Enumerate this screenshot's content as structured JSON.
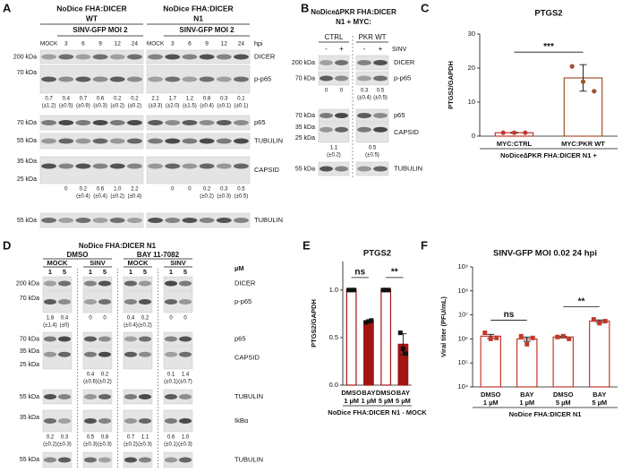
{
  "panel_labels": [
    "A",
    "B",
    "C",
    "D",
    "E",
    "F"
  ],
  "A": {
    "groups": [
      {
        "title": "NoDice FHA:DICER",
        "subtitle": "WT",
        "infection": "SINV-GFP MOI 2"
      },
      {
        "title": "NoDice FHA:DICER",
        "subtitle": "N1",
        "infection": "SINV-GFP MOI 2"
      }
    ],
    "lanes": [
      "MOCK",
      "3",
      "6",
      "9",
      "12",
      "24",
      "MOCK",
      "3",
      "6",
      "9",
      "12",
      "24"
    ],
    "lane_unit": "hpi",
    "blots": [
      {
        "markers": [
          "200 kDa"
        ],
        "target": "DICER"
      },
      {
        "markers": [
          "70 kDa"
        ],
        "target": "p-p65",
        "quant": {
          "values": [
            "0.7",
            "0.4",
            "0.7",
            "0.6",
            "0.2",
            "0.2",
            "2.1",
            "1.7",
            "1.2",
            "0.8",
            "0.3",
            "0.1"
          ],
          "sd": [
            "(±1.2)",
            "(±0.5)",
            "(±0.9)",
            "(±0.3)",
            "(±0.2)",
            "(±0.2)",
            "(±3.3)",
            "(±2.0)",
            "(±1.5)",
            "(±0.4)",
            "(±0.1)",
            "(±0.1)"
          ]
        }
      },
      {
        "markers": [
          "70 kDa"
        ],
        "target": "p65"
      },
      {
        "markers": [
          "55 kDa"
        ],
        "target": "TUBULIN"
      },
      {
        "markers": [
          "35 kDa",
          "25 kDa"
        ],
        "target": "CAPSID",
        "quant": {
          "values": [
            null,
            "0",
            "0.2",
            "0.6",
            "1.0",
            "2.2",
            null,
            "0",
            "0",
            "0.2",
            "0.3",
            "0.5"
          ],
          "sd": [
            null,
            null,
            "(±0.4)",
            "(±0.4)",
            "(±0.2)",
            "(±0.4)",
            null,
            null,
            null,
            "(±0.2)",
            "(±0.3)",
            "(±0.5)"
          ]
        }
      },
      {
        "markers": [
          "55 kDa"
        ],
        "target": "TUBULIN"
      }
    ]
  },
  "B": {
    "title": [
      "NoDice∆PKR FHA:DICER",
      "N1 + MYC:"
    ],
    "groups": [
      "CTRL",
      "PKR WT"
    ],
    "lanes": [
      "-",
      "+",
      "-",
      "+"
    ],
    "lane_unit": "SINV",
    "blots": [
      {
        "markers": [
          "200 kDa"
        ],
        "target": "DICER"
      },
      {
        "markers": [
          "70 kDa"
        ],
        "target": "p-p65",
        "quant": {
          "values": [
            "0",
            "0",
            "0.3",
            "0.5"
          ],
          "sd": [
            null,
            null,
            "(±0.4)",
            "(±0.5)"
          ]
        }
      },
      {
        "markers": [
          "70 kDa"
        ],
        "target": "p65"
      },
      {
        "markers": [
          "35 kDa",
          "25 kDa"
        ],
        "target": "CAPSID",
        "quant": {
          "values": [
            "1.1",
            "0.5"
          ],
          "sd": [
            "(±0.2)",
            "(±0.5)"
          ]
        }
      },
      {
        "markers": [
          "55 kDa"
        ],
        "target": "TUBULIN"
      }
    ]
  },
  "D": {
    "title": "NoDice FHA:DICER N1",
    "treatments": [
      "DMSO",
      "BAY 11-7082"
    ],
    "groups": [
      "MOCK",
      "SINV",
      "MOCK",
      "SINV"
    ],
    "lanes": [
      "1",
      "5",
      "1",
      "5",
      "1",
      "5",
      "1",
      "5"
    ],
    "lane_unit": "µM",
    "blots": [
      {
        "markers": [
          "200 kDa"
        ],
        "target": "DICER"
      },
      {
        "markers": [
          "70 kDa"
        ],
        "target": "p-p65",
        "quant": {
          "values": [
            "1.8",
            "0.4",
            "0",
            "0",
            "0.4",
            "0.2",
            "0",
            "0"
          ],
          "sd": [
            "(±1.4)",
            "(±0)",
            null,
            null,
            "(±0.4)",
            "(±0.2)",
            null,
            null
          ]
        }
      },
      {
        "markers": [
          "70 kDa"
        ],
        "target": "p65"
      },
      {
        "markers": [
          "35 kDa",
          "25 kDa"
        ],
        "target": "CAPSID",
        "quant": {
          "values": [
            null,
            null,
            "0.4",
            "0.2",
            null,
            null,
            "0.1",
            "1.4"
          ],
          "sd": [
            null,
            null,
            "(±0.6)",
            "(±0.2)",
            null,
            null,
            "(±0.1)",
            "(±0.7)"
          ]
        }
      },
      {
        "markers": [
          "55 kDa"
        ],
        "target": "TUBULIN"
      },
      {
        "markers": [
          "35 kDa"
        ],
        "target": "IkBα",
        "quant": {
          "values": [
            "0.2",
            "0.3",
            "0.5",
            "0.8",
            "0.7",
            "1.1",
            "0.6",
            "1.0"
          ],
          "sd": [
            "(±0.2)",
            "(±0.3)",
            "(±0.3)",
            "(±0.3)",
            "(±0.2)",
            "(±0.3)",
            "(±0.1)",
            "(±0.3)"
          ]
        }
      },
      {
        "markers": [
          "55 kDa"
        ],
        "target": "TUBULIN"
      }
    ]
  },
  "chart_data": [
    {
      "type": "bar",
      "title": "PTGS2",
      "ylabel": "PTGS2/GAPDH",
      "xlabel": "NoDice∆PKR FHA:DICER N1 +",
      "categories": [
        [
          "MYC:CTRL"
        ],
        [
          "MYC:PKR WT"
        ]
      ],
      "values": [
        1,
        17.1
      ],
      "errors": [
        0.1,
        3.9
      ],
      "points": [
        [
          1,
          1,
          1
        ],
        [
          20.5,
          16,
          13.2
        ]
      ],
      "marker": "circle",
      "edge_colors": [
        "#c0392b",
        "#a0522d"
      ],
      "fill_colors": [
        "#ffffff",
        "#ffffff"
      ],
      "point_colors": [
        "#c0392b",
        "#a0522d"
      ],
      "ylim": [
        0,
        30
      ],
      "yticks": [
        0,
        10,
        20,
        30
      ],
      "significance": [
        "***"
      ]
    },
    {
      "type": "bar",
      "title": "PTGS2",
      "ylabel": "PTGS2/GAPDH",
      "xlabel": "NoDice FHA:DICER N1 - MOCK",
      "categories": [
        [
          "DMSO",
          "1 µM"
        ],
        [
          "BAY",
          "1 µM"
        ],
        [
          "DMSO",
          "5 µM"
        ],
        [
          "BAY",
          "5 µM"
        ]
      ],
      "values": [
        1,
        0.67,
        1,
        0.43
      ],
      "errors": [
        0,
        0.01,
        0,
        0.11
      ],
      "points": [
        [
          1,
          1,
          1
        ],
        [
          0.66,
          0.67,
          0.68
        ],
        [
          1,
          1,
          1
        ],
        [
          0.55,
          0.38,
          0.33
        ]
      ],
      "marker": "square",
      "edge_colors": [
        "#a31515",
        "#a31515",
        "#a31515",
        "#a31515"
      ],
      "fill_colors": [
        "#ffffff",
        "#a31515",
        "#ffffff",
        "#a31515"
      ],
      "point_colors": [
        "#111111",
        "#111111",
        "#111111",
        "#111111"
      ],
      "ylim": [
        0,
        1.3
      ],
      "yticks": [
        {
          "value": 0,
          "label": "0.0"
        },
        {
          "value": 0.5,
          "label": "0.5"
        },
        {
          "value": 1,
          "label": "1.0"
        }
      ],
      "significance": [
        "ns",
        "**"
      ]
    },
    {
      "type": "bar",
      "title": "SINV-GFP MOI 0.02 24 hpi",
      "ylabel": "Viral titer (PFU/mL)",
      "xlabel": "NoDice FHA:DICER N1",
      "categories": [
        [
          "DMSO",
          "1 µM"
        ],
        [
          "BAY",
          "1 µM"
        ],
        [
          "DMSO",
          "5 µM"
        ],
        [
          "BAY",
          "5 µM"
        ]
      ],
      "values": [
        1300000,
        1000000,
        1200000,
        5500000
      ],
      "errors": [
        250000,
        200000,
        100000,
        700000
      ],
      "points": [
        [
          1800000,
          1000000,
          1100000
        ],
        [
          1300000,
          600000,
          1100000
        ],
        [
          1200000,
          1300000,
          1000000
        ],
        [
          6500000,
          4500000,
          5500000
        ]
      ],
      "marker": "square",
      "log": true,
      "edge_colors": [
        "#c0392b",
        "#c0392b",
        "#c0392b",
        "#c0392b"
      ],
      "fill_colors": [
        "#ffffff",
        "#ffffff",
        "#ffffff",
        "#ffffff"
      ],
      "point_colors": [
        "#c0392b",
        "#c0392b",
        "#c0392b",
        "#c0392b"
      ],
      "ylim": [
        10000,
        1000000000
      ],
      "yticks": [
        {
          "value": 10000,
          "label": "10⁴"
        },
        {
          "value": 100000,
          "label": "10⁵"
        },
        {
          "value": 1000000,
          "label": "10⁶"
        },
        {
          "value": 10000000,
          "label": "10⁷"
        },
        {
          "value": 100000000,
          "label": "10⁸"
        },
        {
          "value": 1000000000,
          "label": "10⁹"
        }
      ],
      "significance": [
        "ns",
        "**"
      ]
    }
  ]
}
